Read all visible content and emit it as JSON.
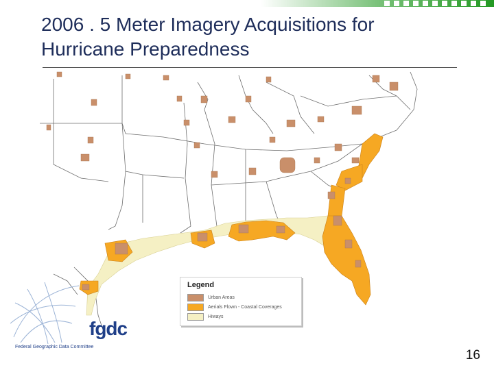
{
  "slide": {
    "title": "2006 . 5 Meter Imagery Acquisitions for Hurricane Preparedness",
    "page_number": "16"
  },
  "legend": {
    "title": "Legend",
    "items": [
      {
        "label": "Urban Areas",
        "color": "#c98f6a"
      },
      {
        "label": "Aerials Flown - Coastal Coverages",
        "color": "#f6a823"
      },
      {
        "label": "Hiways",
        "color": "#f5f0c4"
      }
    ]
  },
  "logo": {
    "name": "fgdc",
    "subtitle": "Federal Geographic Data Committee"
  },
  "colors": {
    "title": "#1e2d5a",
    "brand_green": "#229922",
    "urban": "#c98f6a",
    "coastal": "#f6a823",
    "hiways": "#f5f0c4",
    "state_lines": "#6d6d6d"
  }
}
